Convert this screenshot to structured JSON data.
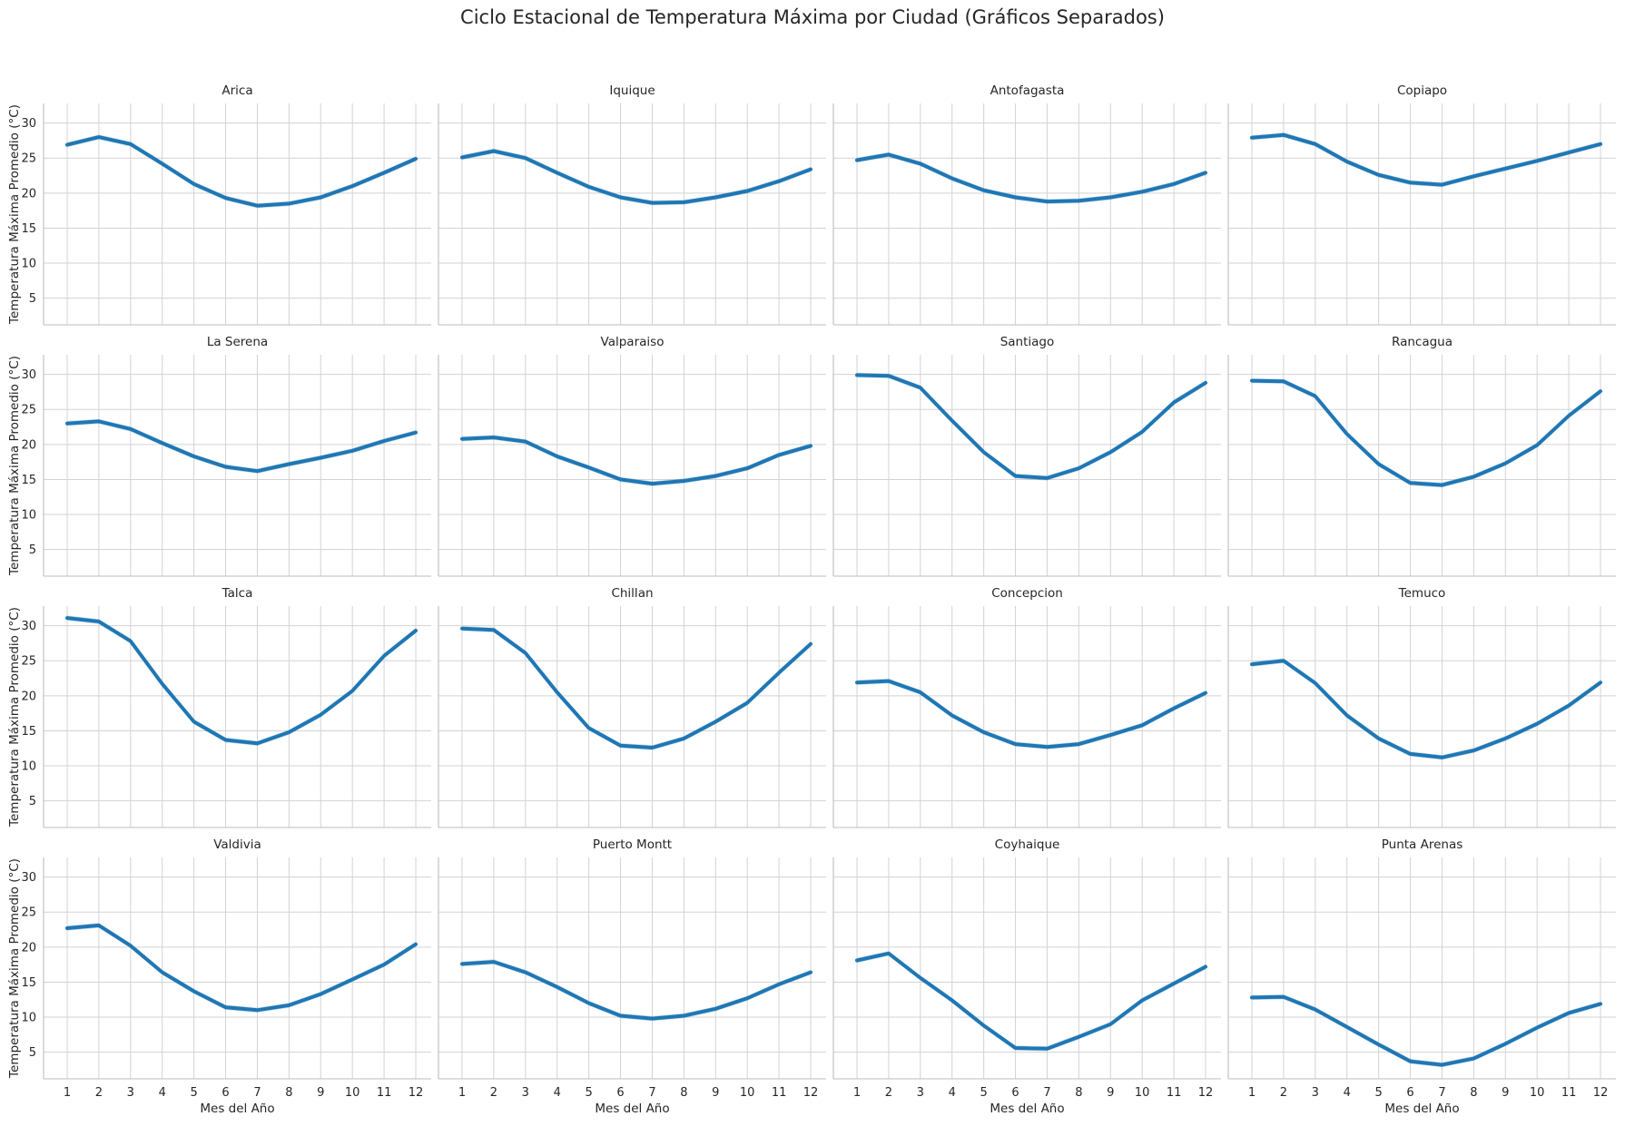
{
  "figure": {
    "title": "Ciclo Estacional de Temperatura Máxima por Ciudad (Gráficos Separados)"
  },
  "chart_data": {
    "type": "line",
    "layout": "facet-grid 4x4",
    "shared_axes": true,
    "grid": true,
    "xlabel": "Mes del Año",
    "ylabel": "Temperatura Máxima Promedio (°C)",
    "x": [
      1,
      2,
      3,
      4,
      5,
      6,
      7,
      8,
      9,
      10,
      11,
      12
    ],
    "xticks": [
      "1",
      "2",
      "3",
      "4",
      "5",
      "6",
      "7",
      "8",
      "9",
      "10",
      "11",
      "12"
    ],
    "ylim": [
      1.2,
      32.8
    ],
    "yticks": [
      "5",
      "10",
      "15",
      "20",
      "25",
      "30"
    ],
    "ytick_values": [
      5,
      10,
      15,
      20,
      25,
      30
    ],
    "line_color": "#1f77b4",
    "band": "confidence interval (light shading)",
    "panels": [
      {
        "title": "Arica",
        "values": [
          26.9,
          28.0,
          27.0,
          24.2,
          21.3,
          19.3,
          18.2,
          18.5,
          19.4,
          21.0,
          22.9,
          24.9
        ]
      },
      {
        "title": "Iquique",
        "values": [
          25.1,
          26.0,
          25.0,
          22.9,
          20.9,
          19.4,
          18.6,
          18.7,
          19.4,
          20.3,
          21.7,
          23.4
        ]
      },
      {
        "title": "Antofagasta",
        "values": [
          24.7,
          25.5,
          24.2,
          22.1,
          20.4,
          19.4,
          18.8,
          18.9,
          19.4,
          20.2,
          21.3,
          22.9
        ]
      },
      {
        "title": "Copiapo",
        "values": [
          27.9,
          28.3,
          27.0,
          24.5,
          22.6,
          21.5,
          21.2,
          22.4,
          23.5,
          24.6,
          25.8,
          27.0
        ]
      },
      {
        "title": "La Serena",
        "values": [
          23.0,
          23.3,
          22.2,
          20.2,
          18.3,
          16.8,
          16.2,
          17.2,
          18.1,
          19.1,
          20.5,
          21.7
        ]
      },
      {
        "title": "Valparaiso",
        "values": [
          20.8,
          21.0,
          20.4,
          18.3,
          16.7,
          15.0,
          14.4,
          14.8,
          15.5,
          16.6,
          18.5,
          19.8
        ]
      },
      {
        "title": "Santiago",
        "values": [
          29.9,
          29.8,
          28.1,
          23.4,
          18.9,
          15.5,
          15.2,
          16.6,
          18.9,
          21.8,
          26.0,
          28.8
        ]
      },
      {
        "title": "Rancagua",
        "values": [
          29.1,
          29.0,
          26.9,
          21.5,
          17.2,
          14.5,
          14.2,
          15.4,
          17.3,
          19.9,
          24.1,
          27.6
        ]
      },
      {
        "title": "Talca",
        "values": [
          31.1,
          30.6,
          27.8,
          21.7,
          16.3,
          13.7,
          13.2,
          14.8,
          17.3,
          20.7,
          25.7,
          29.3
        ]
      },
      {
        "title": "Chillan",
        "values": [
          29.6,
          29.4,
          26.1,
          20.5,
          15.4,
          12.9,
          12.6,
          13.9,
          16.3,
          19.0,
          23.3,
          27.4
        ]
      },
      {
        "title": "Concepcion",
        "values": [
          21.9,
          22.1,
          20.5,
          17.2,
          14.8,
          13.1,
          12.7,
          13.1,
          14.4,
          15.8,
          18.2,
          20.4
        ]
      },
      {
        "title": "Temuco",
        "values": [
          24.5,
          25.0,
          21.8,
          17.2,
          13.9,
          11.7,
          11.2,
          12.2,
          13.9,
          16.0,
          18.6,
          21.9
        ]
      },
      {
        "title": "Valdivia",
        "values": [
          22.7,
          23.1,
          20.2,
          16.4,
          13.7,
          11.4,
          11.0,
          11.7,
          13.3,
          15.4,
          17.5,
          20.4
        ]
      },
      {
        "title": "Puerto Montt",
        "values": [
          17.6,
          17.9,
          16.4,
          14.3,
          12.0,
          10.2,
          9.8,
          10.2,
          11.2,
          12.7,
          14.7,
          16.4
        ]
      },
      {
        "title": "Coyhaique",
        "values": [
          18.1,
          19.1,
          15.6,
          12.4,
          8.8,
          5.6,
          5.5,
          7.2,
          9.0,
          12.4,
          14.8,
          17.2
        ]
      },
      {
        "title": "Punta Arenas",
        "values": [
          12.8,
          12.9,
          11.1,
          8.6,
          6.1,
          3.7,
          3.2,
          4.1,
          6.2,
          8.5,
          10.6,
          11.9
        ]
      }
    ]
  }
}
